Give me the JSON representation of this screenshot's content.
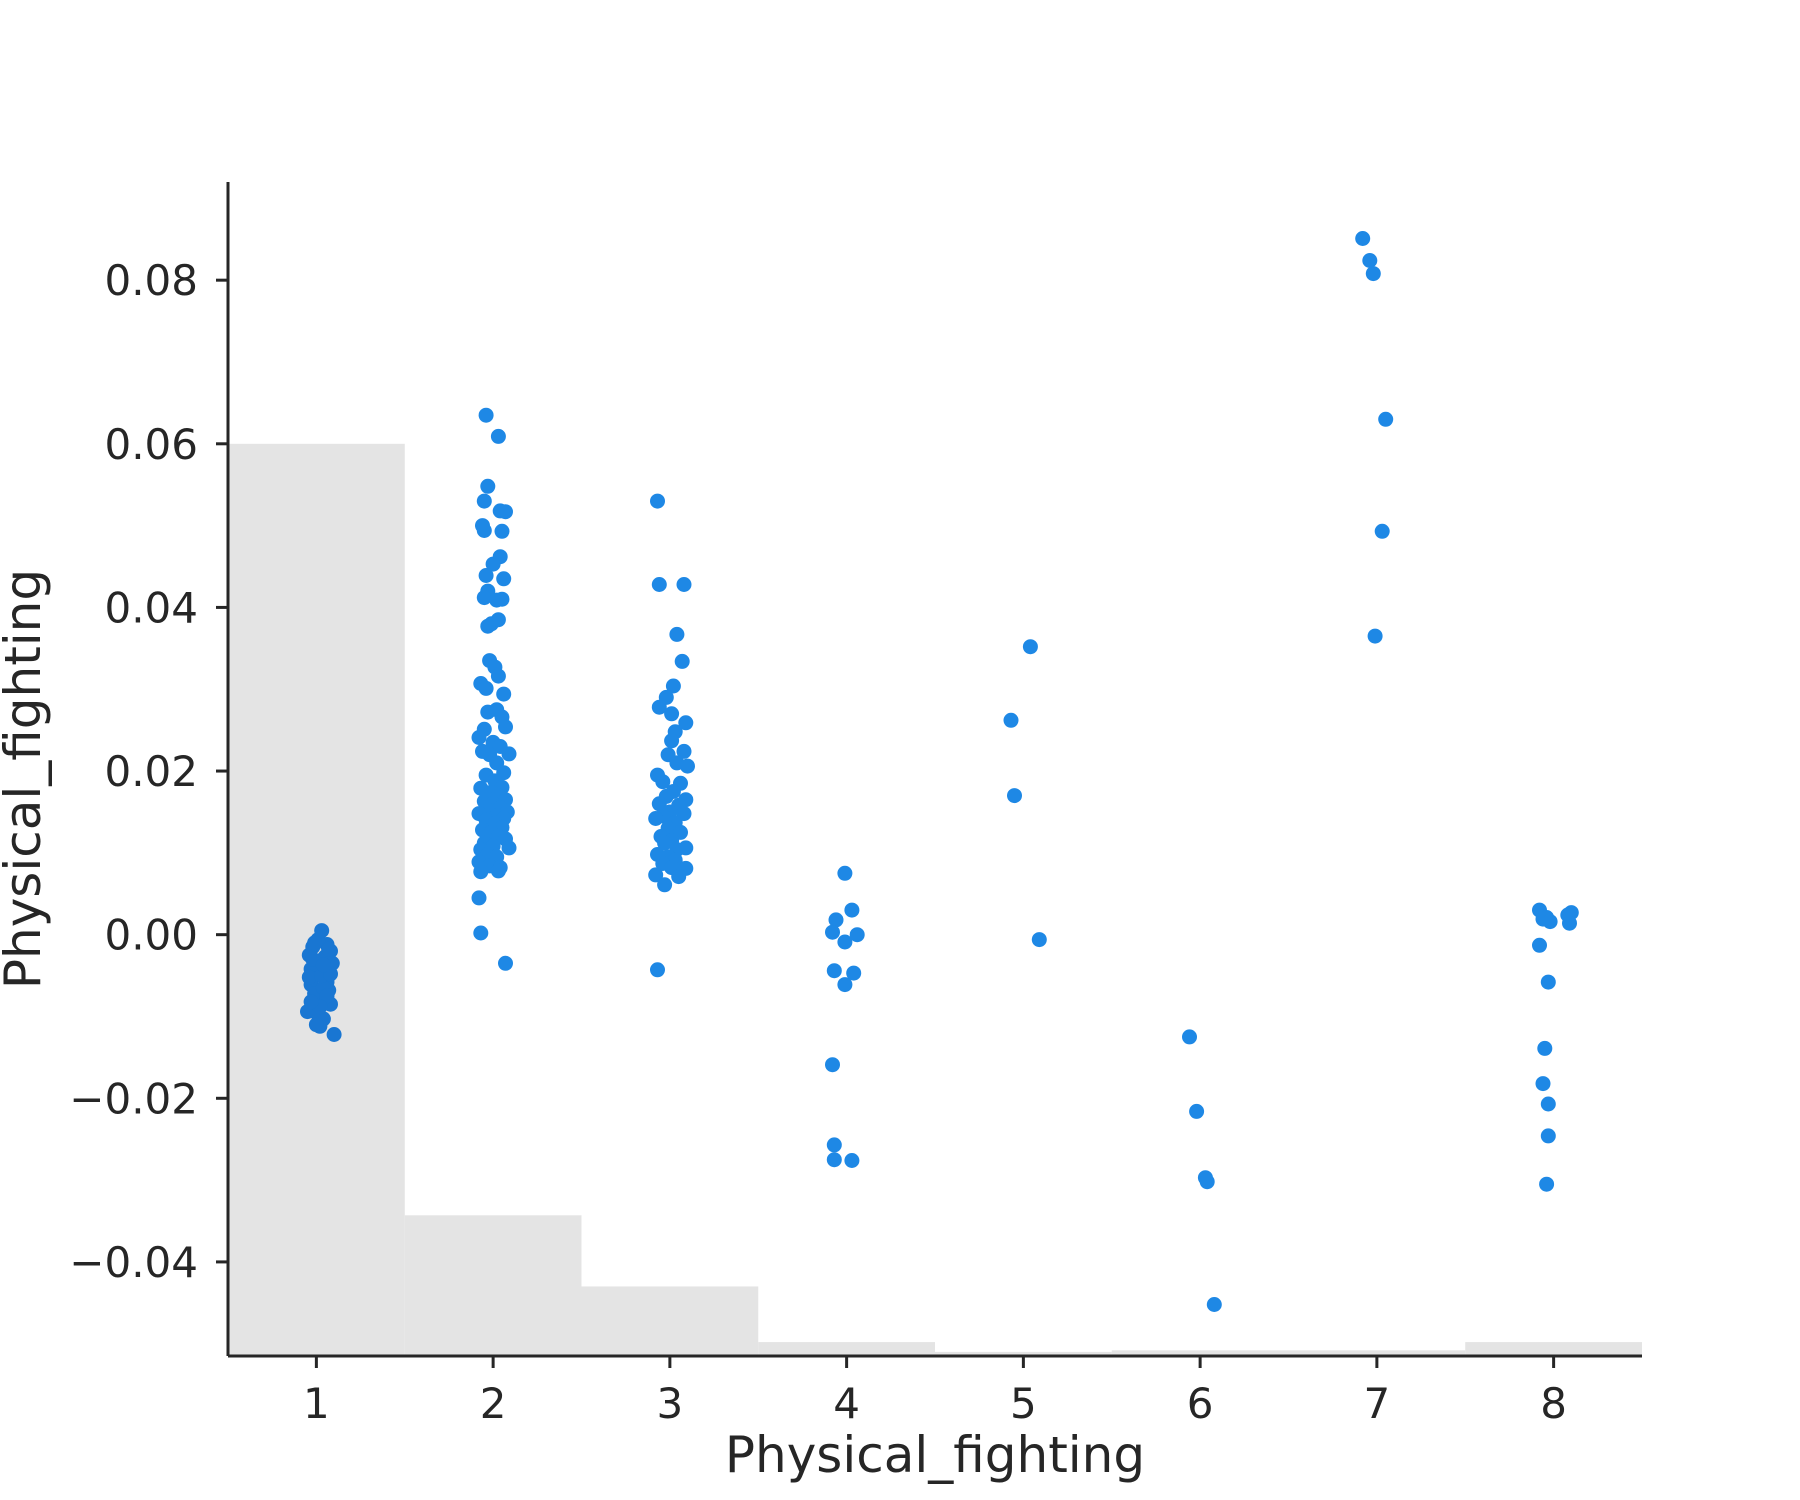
{
  "chart_data": {
    "type": "scatter",
    "title": "",
    "xlabel": "Physical_fighting",
    "ylabel": "Physical_fighting",
    "xlim": [
      0.5,
      8.5
    ],
    "ylim": [
      -0.0515,
      0.092
    ],
    "grid": false,
    "x_ticks": [
      {
        "value": 1,
        "label": "1"
      },
      {
        "value": 2,
        "label": "2"
      },
      {
        "value": 3,
        "label": "3"
      },
      {
        "value": 4,
        "label": "4"
      },
      {
        "value": 5,
        "label": "5"
      },
      {
        "value": 6,
        "label": "6"
      },
      {
        "value": 7,
        "label": "7"
      },
      {
        "value": 8,
        "label": "8"
      }
    ],
    "y_ticks": [
      {
        "value": -0.04,
        "label": "−0.04"
      },
      {
        "value": -0.02,
        "label": "−0.02"
      },
      {
        "value": 0.0,
        "label": "0.00"
      },
      {
        "value": 0.02,
        "label": "0.02"
      },
      {
        "value": 0.04,
        "label": "0.04"
      },
      {
        "value": 0.06,
        "label": "0.06"
      },
      {
        "value": 0.08,
        "label": "0.08"
      }
    ],
    "histogram": {
      "note": "background distribution of feature values",
      "bins": [
        1,
        2,
        3,
        4,
        5,
        6,
        7,
        8
      ],
      "tops": [
        0.06,
        -0.0343,
        -0.043,
        -0.0498,
        -0.051,
        -0.0508,
        -0.0508,
        -0.0498
      ]
    },
    "colors": {
      "points": "#1e88e5",
      "dense_points": "#1976d2",
      "histogram": "#e4e4e4",
      "axis": "#262626"
    },
    "series": [
      {
        "points": [
          [
            0.99,
            -0.004
          ],
          [
            1.02,
            -0.0032
          ],
          [
            1.05,
            -0.0055
          ],
          [
            0.97,
            -0.0061
          ],
          [
            1.08,
            -0.002
          ],
          [
            1.03,
            -0.0078
          ],
          [
            0.98,
            -0.009
          ],
          [
            1.06,
            -0.0012
          ],
          [
            1.01,
            -0.0006
          ],
          [
            0.96,
            -0.0025
          ],
          [
            1.07,
            -0.0068
          ],
          [
            1.04,
            -0.0103
          ],
          [
            1.0,
            -0.0083
          ],
          [
            0.98,
            -0.0015
          ],
          [
            1.05,
            -0.0045
          ],
          [
            1.02,
            -0.0112
          ],
          [
            1.09,
            -0.0035
          ],
          [
            0.95,
            -0.0094
          ],
          [
            1.06,
            -0.0058
          ],
          [
            1.03,
            0.0005
          ],
          [
            0.99,
            -0.0072
          ],
          [
            1.08,
            -0.0085
          ],
          [
            0.97,
            -0.0042
          ],
          [
            1.01,
            -0.0098
          ],
          [
            1.05,
            -0.0027
          ],
          [
            1.04,
            -0.0065
          ],
          [
            0.96,
            -0.0052
          ],
          [
            1.07,
            -0.0018
          ],
          [
            1.0,
            -0.011
          ],
          [
            1.03,
            -0.005
          ],
          [
            1.1,
            -0.0122
          ],
          [
            0.98,
            -0.003
          ],
          [
            1.06,
            -0.0075
          ],
          [
            1.02,
            -0.0088
          ],
          [
            0.99,
            -0.001
          ],
          [
            1.08,
            -0.0048
          ],
          [
            0.97,
            -0.0082
          ],
          [
            1.04,
            -0.0037
          ]
        ]
      },
      {
        "points": [
          [
            1.96,
            0.0635
          ],
          [
            2.03,
            0.0609
          ],
          [
            1.97,
            0.0548
          ],
          [
            1.95,
            0.053
          ],
          [
            2.04,
            0.0518
          ],
          [
            2.07,
            0.0517
          ],
          [
            1.94,
            0.05
          ],
          [
            2.05,
            0.0493
          ],
          [
            1.95,
            0.0494
          ],
          [
            2.04,
            0.0462
          ],
          [
            2.0,
            0.0453
          ],
          [
            2.06,
            0.0435
          ],
          [
            1.96,
            0.0439
          ],
          [
            1.97,
            0.042
          ],
          [
            1.95,
            0.0412
          ],
          [
            2.02,
            0.0409
          ],
          [
            2.05,
            0.041
          ],
          [
            1.99,
            0.038
          ],
          [
            2.03,
            0.0385
          ],
          [
            1.97,
            0.0377
          ],
          [
            1.98,
            0.0335
          ],
          [
            2.01,
            0.0327
          ],
          [
            2.03,
            0.0316
          ],
          [
            1.93,
            0.0307
          ],
          [
            2.06,
            0.0294
          ],
          [
            1.96,
            0.0301
          ],
          [
            2.02,
            0.0275
          ],
          [
            1.97,
            0.0272
          ],
          [
            2.05,
            0.0266
          ],
          [
            1.95,
            0.0251
          ],
          [
            2.07,
            0.0254
          ],
          [
            1.92,
            0.0241
          ],
          [
            2.0,
            0.0235
          ],
          [
            2.04,
            0.023
          ],
          [
            1.98,
            0.022
          ],
          [
            2.09,
            0.0221
          ],
          [
            1.94,
            0.0224
          ],
          [
            2.02,
            0.021
          ],
          [
            2.06,
            0.0198
          ],
          [
            1.96,
            0.0195
          ],
          [
            2.01,
            0.0188
          ],
          [
            2.05,
            0.018
          ],
          [
            1.93,
            0.0179
          ],
          [
            1.99,
            0.0174
          ],
          [
            2.03,
            0.017
          ],
          [
            2.07,
            0.0165
          ],
          [
            1.95,
            0.0163
          ],
          [
            2.0,
            0.016
          ],
          [
            2.04,
            0.0155
          ],
          [
            1.97,
            0.0152
          ],
          [
            2.08,
            0.015
          ],
          [
            1.92,
            0.0148
          ],
          [
            2.02,
            0.0145
          ],
          [
            2.06,
            0.0142
          ],
          [
            1.96,
            0.014
          ],
          [
            2.01,
            0.0136
          ],
          [
            2.05,
            0.0131
          ],
          [
            1.94,
            0.0128
          ],
          [
            1.99,
            0.0125
          ],
          [
            2.03,
            0.012
          ],
          [
            2.07,
            0.0117
          ],
          [
            1.95,
            0.0112
          ],
          [
            2.0,
            0.0108
          ],
          [
            2.09,
            0.0106
          ],
          [
            1.93,
            0.0104
          ],
          [
            1.97,
            0.0098
          ],
          [
            2.02,
            0.0095
          ],
          [
            1.92,
            0.0089
          ],
          [
            1.98,
            0.0084
          ],
          [
            2.04,
            0.0082
          ],
          [
            2.03,
            0.0078
          ],
          [
            1.93,
            0.0077
          ],
          [
            1.92,
            0.0045
          ],
          [
            1.93,
            0.0002
          ],
          [
            2.07,
            -0.0035
          ]
        ]
      },
      {
        "points": [
          [
            2.93,
            0.053
          ],
          [
            2.94,
            0.0428
          ],
          [
            3.08,
            0.0428
          ],
          [
            3.04,
            0.0367
          ],
          [
            3.07,
            0.0334
          ],
          [
            3.02,
            0.0304
          ],
          [
            2.98,
            0.029
          ],
          [
            2.94,
            0.0278
          ],
          [
            3.01,
            0.027
          ],
          [
            3.09,
            0.0259
          ],
          [
            3.03,
            0.0248
          ],
          [
            3.01,
            0.0237
          ],
          [
            3.08,
            0.0224
          ],
          [
            2.99,
            0.022
          ],
          [
            3.04,
            0.021
          ],
          [
            3.1,
            0.0206
          ],
          [
            2.93,
            0.0195
          ],
          [
            2.96,
            0.0187
          ],
          [
            3.06,
            0.0185
          ],
          [
            3.02,
            0.0175
          ],
          [
            2.98,
            0.0169
          ],
          [
            3.09,
            0.0165
          ],
          [
            2.94,
            0.016
          ],
          [
            3.05,
            0.0158
          ],
          [
            3.0,
            0.015
          ],
          [
            3.08,
            0.0148
          ],
          [
            2.96,
            0.0145
          ],
          [
            2.92,
            0.0142
          ],
          [
            3.03,
            0.0137
          ],
          [
            2.99,
            0.013
          ],
          [
            3.06,
            0.0125
          ],
          [
            2.95,
            0.012
          ],
          [
            3.01,
            0.0115
          ],
          [
            2.97,
            0.0112
          ],
          [
            3.09,
            0.0106
          ],
          [
            3.04,
            0.0104
          ],
          [
            2.93,
            0.0098
          ],
          [
            2.99,
            0.0095
          ],
          [
            3.03,
            0.0091
          ],
          [
            2.96,
            0.0087
          ],
          [
            3.09,
            0.0081
          ],
          [
            3.01,
            0.0082
          ],
          [
            2.92,
            0.0073
          ],
          [
            3.05,
            0.0071
          ],
          [
            2.97,
            0.0061
          ],
          [
            2.93,
            -0.0043
          ]
        ]
      },
      {
        "points": [
          [
            3.99,
            0.0075
          ],
          [
            4.03,
            0.003
          ],
          [
            3.94,
            0.0018
          ],
          [
            3.92,
            0.0003
          ],
          [
            4.06,
            0.0
          ],
          [
            3.99,
            -0.0009
          ],
          [
            3.93,
            -0.0044
          ],
          [
            4.04,
            -0.0047
          ],
          [
            3.99,
            -0.0061
          ],
          [
            3.92,
            -0.0159
          ],
          [
            3.93,
            -0.0257
          ],
          [
            3.93,
            -0.0275
          ],
          [
            4.03,
            -0.0276
          ]
        ]
      },
      {
        "points": [
          [
            5.04,
            0.0352
          ],
          [
            4.93,
            0.0262
          ],
          [
            4.95,
            0.017
          ],
          [
            5.09,
            -0.0006
          ]
        ]
      },
      {
        "points": [
          [
            5.94,
            -0.0125
          ],
          [
            5.98,
            -0.0216
          ],
          [
            6.03,
            -0.0297
          ],
          [
            6.04,
            -0.0302
          ],
          [
            6.08,
            -0.0452
          ]
        ]
      },
      {
        "points": [
          [
            6.92,
            0.0851
          ],
          [
            6.96,
            0.0824
          ],
          [
            6.98,
            0.0808
          ],
          [
            7.05,
            0.063
          ],
          [
            7.03,
            0.0493
          ],
          [
            6.99,
            0.0365
          ]
        ]
      },
      {
        "points": [
          [
            7.92,
            0.003
          ],
          [
            8.1,
            0.0027
          ],
          [
            8.08,
            0.0024
          ],
          [
            7.96,
            0.0021
          ],
          [
            7.94,
            0.0019
          ],
          [
            7.98,
            0.0016
          ],
          [
            8.09,
            0.0014
          ],
          [
            7.92,
            -0.0013
          ],
          [
            7.97,
            -0.0058
          ],
          [
            7.95,
            -0.0139
          ],
          [
            7.94,
            -0.0182
          ],
          [
            7.97,
            -0.0207
          ],
          [
            7.97,
            -0.0246
          ],
          [
            7.96,
            -0.0305
          ]
        ]
      }
    ]
  }
}
